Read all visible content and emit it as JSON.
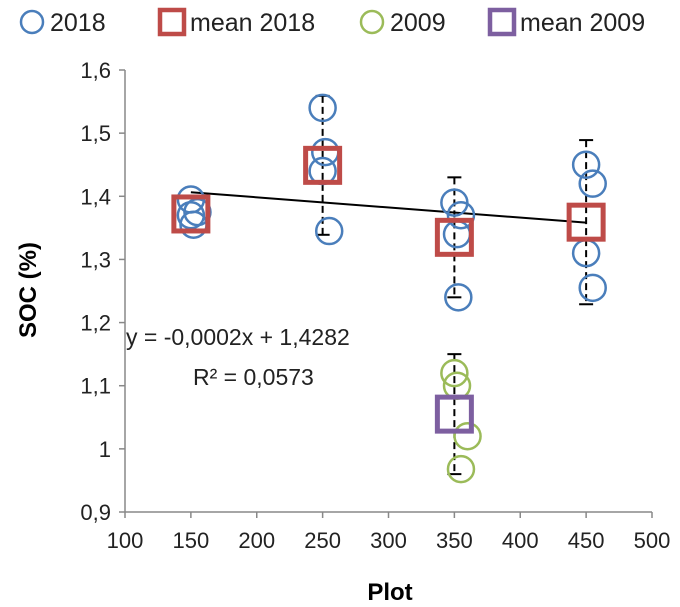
{
  "chart_data": {
    "type": "scatter",
    "xlabel": "Plot",
    "ylabel": "SOC (%)",
    "xlim": [
      100,
      500
    ],
    "ylim": [
      0.9,
      1.6
    ],
    "x_ticks": [
      "100",
      "150",
      "200",
      "250",
      "300",
      "350",
      "400",
      "450",
      "500"
    ],
    "y_ticks": [
      "0,9",
      "1",
      "1,1",
      "1,2",
      "1,3",
      "1,4",
      "1,5",
      "1,6"
    ],
    "grid": false,
    "legend_position": "top",
    "series": [
      {
        "name": "2018",
        "marker": "circle-open",
        "color": "#4a7ebb",
        "points": [
          {
            "x": 150,
            "y": 1.395
          },
          {
            "x": 150,
            "y": 1.37
          },
          {
            "x": 152,
            "y": 1.355
          },
          {
            "x": 155,
            "y": 1.375
          },
          {
            "x": 250,
            "y": 1.54
          },
          {
            "x": 252,
            "y": 1.47
          },
          {
            "x": 250,
            "y": 1.44
          },
          {
            "x": 255,
            "y": 1.345
          },
          {
            "x": 350,
            "y": 1.39
          },
          {
            "x": 355,
            "y": 1.37
          },
          {
            "x": 352,
            "y": 1.34
          },
          {
            "x": 353,
            "y": 1.24
          },
          {
            "x": 450,
            "y": 1.45
          },
          {
            "x": 455,
            "y": 1.42
          },
          {
            "x": 450,
            "y": 1.31
          },
          {
            "x": 455,
            "y": 1.255
          }
        ]
      },
      {
        "name": "mean 2018",
        "marker": "square-open",
        "color": "#be4b48",
        "points": [
          {
            "x": 150,
            "y": 1.372,
            "err": 0.0
          },
          {
            "x": 250,
            "y": 1.449,
            "err": 0.11
          },
          {
            "x": 350,
            "y": 1.335,
            "err": 0.095
          },
          {
            "x": 450,
            "y": 1.359,
            "err": 0.13
          }
        ]
      },
      {
        "name": "2009",
        "marker": "circle-open",
        "color": "#9bbb59",
        "points": [
          {
            "x": 350,
            "y": 1.12
          },
          {
            "x": 352,
            "y": 1.1
          },
          {
            "x": 360,
            "y": 1.02
          },
          {
            "x": 355,
            "y": 0.968
          }
        ]
      },
      {
        "name": "mean 2009",
        "marker": "square-open",
        "color": "#7d5fa0",
        "points": [
          {
            "x": 350,
            "y": 1.055,
            "err": 0.095
          }
        ]
      }
    ],
    "trendline": {
      "x": [
        150,
        450
      ],
      "y": [
        1.4064,
        1.3582
      ],
      "color": "#000000"
    },
    "annotations": {
      "equation": "y = -0,0002x + 1,4282",
      "r_squared": "R² = 0,0573"
    }
  }
}
